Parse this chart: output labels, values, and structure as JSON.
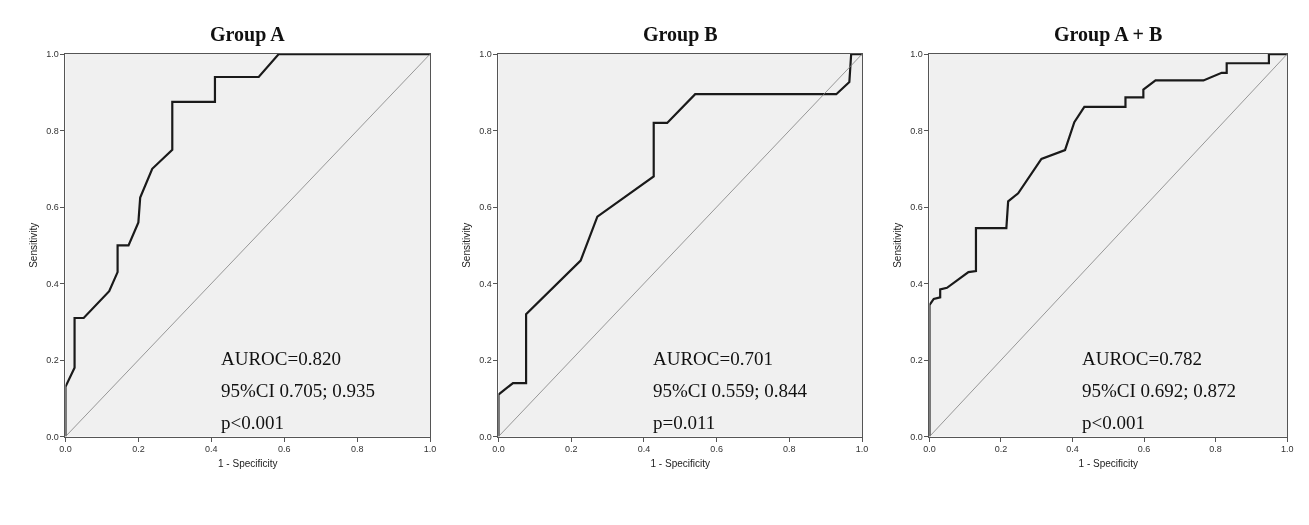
{
  "chart_data": [
    {
      "type": "line",
      "title": "Group A",
      "xlabel": "1 - Specificity",
      "ylabel": "Sensitivity",
      "xlim": [
        0,
        1
      ],
      "ylim": [
        0,
        1
      ],
      "xticks": [
        {
          "value": 0,
          "label": "0.0"
        },
        {
          "value": 0.2,
          "label": "0.2"
        },
        {
          "value": 0.4,
          "label": "0.4"
        },
        {
          "value": 0.6,
          "label": "0.6"
        },
        {
          "value": 0.8,
          "label": "0.8"
        },
        {
          "value": 1,
          "label": "1.0"
        }
      ],
      "yticks": [
        {
          "value": 0,
          "label": "0.0"
        },
        {
          "value": 0.2,
          "label": "0.2"
        },
        {
          "value": 0.4,
          "label": "0.4"
        },
        {
          "value": 0.6,
          "label": "0.6"
        },
        {
          "value": 0.8,
          "label": "0.8"
        },
        {
          "value": 1,
          "label": "1.0"
        }
      ],
      "series": [
        {
          "color": "#1a1a1a",
          "x": [
            0,
            0,
            0.025,
            0.025,
            0.05,
            0.12,
            0.143,
            0.143,
            0.173,
            0.2,
            0.205,
            0.238,
            0.293,
            0.293,
            0.41,
            0.41,
            0.53,
            0.585,
            1
          ],
          "values": [
            0,
            0.13,
            0.18,
            0.31,
            0.31,
            0.38,
            0.43,
            0.5,
            0.5,
            0.56,
            0.625,
            0.7,
            0.75,
            0.875,
            0.875,
            0.94,
            0.94,
            1,
            1
          ]
        },
        {
          "color": "#808080",
          "x": [
            0,
            1
          ],
          "values": [
            0,
            1
          ]
        }
      ],
      "annotations": [
        "AUROC=0.820",
        "95%CI 0.705; 0.935",
        "p<0.001"
      ]
    },
    {
      "type": "line",
      "title": "Group B",
      "xlabel": "1 - Specificity",
      "ylabel": "Sensitivity",
      "xlim": [
        0,
        1
      ],
      "ylim": [
        0,
        1
      ],
      "xticks": [
        {
          "value": 0,
          "label": "0.0"
        },
        {
          "value": 0.2,
          "label": "0.2"
        },
        {
          "value": 0.4,
          "label": "0.4"
        },
        {
          "value": 0.6,
          "label": "0.6"
        },
        {
          "value": 0.8,
          "label": "0.8"
        },
        {
          "value": 1,
          "label": "1.0"
        }
      ],
      "yticks": [
        {
          "value": 0,
          "label": "0.0"
        },
        {
          "value": 0.2,
          "label": "0.2"
        },
        {
          "value": 0.4,
          "label": "0.4"
        },
        {
          "value": 0.6,
          "label": "0.6"
        },
        {
          "value": 0.8,
          "label": "0.8"
        },
        {
          "value": 1,
          "label": "1.0"
        }
      ],
      "series": [
        {
          "color": "#1a1a1a",
          "x": [
            0,
            0,
            0.04,
            0.076,
            0.076,
            0.226,
            0.272,
            0.427,
            0.427,
            0.464,
            0.541,
            0.929,
            0.965,
            0.97,
            1
          ],
          "values": [
            0,
            0.11,
            0.14,
            0.14,
            0.32,
            0.46,
            0.575,
            0.68,
            0.82,
            0.82,
            0.895,
            0.895,
            0.927,
            1,
            1
          ]
        },
        {
          "color": "#808080",
          "x": [
            0,
            1
          ],
          "values": [
            0,
            1
          ]
        }
      ],
      "annotations": [
        "AUROC=0.701",
        "95%CI 0.559; 0.844",
        "p=0.011"
      ]
    },
    {
      "type": "line",
      "title": "Group A + B",
      "xlabel": "1 - Specificity",
      "ylabel": "Sensitivity",
      "xlim": [
        0,
        1
      ],
      "ylim": [
        0,
        1
      ],
      "xticks": [
        {
          "value": 0,
          "label": "0.0"
        },
        {
          "value": 0.2,
          "label": "0.2"
        },
        {
          "value": 0.4,
          "label": "0.4"
        },
        {
          "value": 0.6,
          "label": "0.6"
        },
        {
          "value": 0.8,
          "label": "0.8"
        },
        {
          "value": 1,
          "label": "1.0"
        }
      ],
      "yticks": [
        {
          "value": 0,
          "label": "0.0"
        },
        {
          "value": 0.2,
          "label": "0.2"
        },
        {
          "value": 0.4,
          "label": "0.4"
        },
        {
          "value": 0.6,
          "label": "0.6"
        },
        {
          "value": 0.8,
          "label": "0.8"
        },
        {
          "value": 1,
          "label": "1.0"
        }
      ],
      "series": [
        {
          "color": "#1a1a1a",
          "x": [
            0,
            0,
            0.012,
            0.03,
            0.03,
            0.049,
            0.109,
            0.13,
            0.13,
            0.215,
            0.22,
            0.248,
            0.313,
            0.379,
            0.405,
            0.433,
            0.548,
            0.548,
            0.598,
            0.598,
            0.632,
            0.766,
            0.817,
            0.831,
            0.831,
            0.949,
            0.949,
            1
          ],
          "values": [
            0,
            0.344,
            0.36,
            0.364,
            0.385,
            0.389,
            0.43,
            0.433,
            0.545,
            0.545,
            0.615,
            0.636,
            0.726,
            0.749,
            0.822,
            0.862,
            0.862,
            0.887,
            0.887,
            0.907,
            0.931,
            0.931,
            0.951,
            0.951,
            0.976,
            0.976,
            1,
            1
          ]
        },
        {
          "color": "#808080",
          "x": [
            0,
            1
          ],
          "values": [
            0,
            1
          ]
        }
      ],
      "annotations": [
        "AUROC=0.782",
        "95%CI 0.692; 0.872",
        "p<0.001"
      ]
    }
  ]
}
